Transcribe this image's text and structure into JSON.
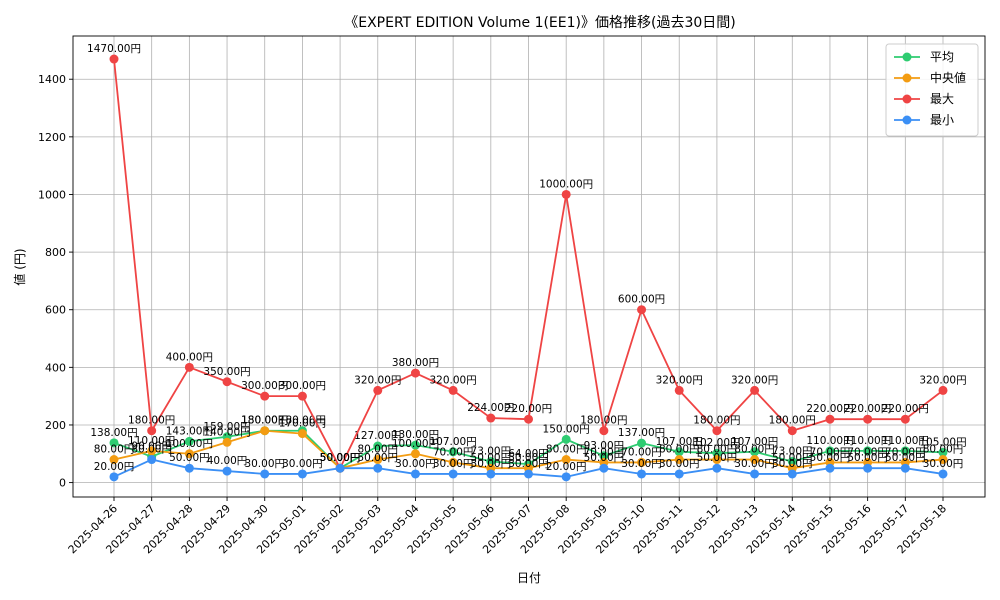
{
  "chart_data": {
    "type": "line",
    "title": "《EXPERT EDITION Volume 1(EE1)》価格推移(過去30日間)",
    "xlabel": "日付",
    "ylabel": "値 (円)",
    "ylim": [
      -50,
      1550
    ],
    "yticks": [
      0,
      200,
      400,
      600,
      800,
      1000,
      1200,
      1400
    ],
    "grid": true,
    "legend_position": "top-right",
    "label_suffix": "円",
    "categories": [
      "2025-04-26",
      "2025-04-27",
      "2025-04-28",
      "2025-04-29",
      "2025-04-30",
      "2025-05-01",
      "2025-05-02",
      "2025-05-03",
      "2025-05-04",
      "2025-05-05",
      "2025-05-06",
      "2025-05-07",
      "2025-05-08",
      "2025-05-09",
      "2025-05-10",
      "2025-05-11",
      "2025-05-12",
      "2025-05-13",
      "2025-05-14",
      "2025-05-15",
      "2025-05-16",
      "2025-05-17",
      "2025-05-18"
    ],
    "series": [
      {
        "name": "平均",
        "color": "#2ecc71",
        "values": [
          138,
          90,
          143,
          159,
          180,
          180,
          50,
          127,
          130,
          107,
          73,
          64,
          150,
          93,
          137,
          107,
          102,
          107,
          73,
          110,
          110,
          110,
          105
        ]
      },
      {
        "name": "中央値",
        "color": "#f39c12",
        "values": [
          80,
          110,
          100,
          140,
          180,
          170,
          50,
          80,
          100,
          70,
          50,
          50,
          80,
          70,
          70,
          80,
          80,
          80,
          50,
          70,
          70,
          70,
          80
        ]
      },
      {
        "name": "最大",
        "color": "#ef4444",
        "values": [
          1470,
          180,
          400,
          350,
          300,
          300,
          50,
          320,
          380,
          320,
          224,
          220,
          1000,
          180,
          600,
          320,
          180,
          320,
          180,
          220,
          220,
          220,
          320
        ]
      },
      {
        "name": "最小",
        "color": "#3b8ff5",
        "values": [
          20,
          80,
          50,
          40,
          30,
          30,
          50,
          50,
          30,
          30,
          30,
          30,
          20,
          50,
          30,
          30,
          50,
          30,
          30,
          50,
          50,
          50,
          30
        ]
      }
    ]
  }
}
